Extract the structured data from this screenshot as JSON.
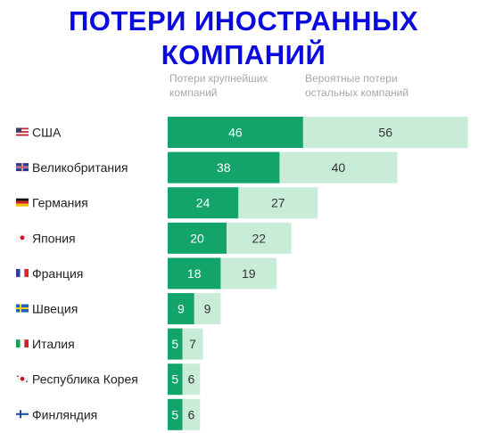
{
  "title_line1": "ПОТЕРИ ИНОСТРАННЫХ",
  "title_line2": "КОМПАНИЙ",
  "colors": {
    "title": "#0a0adf",
    "major": "#12a46a",
    "others": "#c8ecd8",
    "legend_text": "#a8a8a8"
  },
  "chart_data": {
    "type": "bar",
    "orientation": "horizontal",
    "stacked": true,
    "categories": [
      "США",
      "Великобритания",
      "Германия",
      "Япония",
      "Франция",
      "Швеция",
      "Италия",
      "Республика Корея",
      "Финляндия"
    ],
    "flags": [
      "us-flag-icon",
      "uk-flag-icon",
      "de-flag-icon",
      "jp-flag-icon",
      "fr-flag-icon",
      "se-flag-icon",
      "it-flag-icon",
      "kr-flag-icon",
      "fi-flag-icon"
    ],
    "series": [
      {
        "name": "Потери крупнейших компаний",
        "values": [
          46,
          38,
          24,
          20,
          18,
          9,
          5,
          5,
          5
        ]
      },
      {
        "name": "Вероятные потери остальных компаний",
        "values": [
          56,
          40,
          27,
          22,
          19,
          9,
          7,
          6,
          6
        ]
      }
    ],
    "legend": [
      "Потери крупнейших компаний",
      "Вероятные потери остальных компаний"
    ],
    "legend_position": "top"
  }
}
